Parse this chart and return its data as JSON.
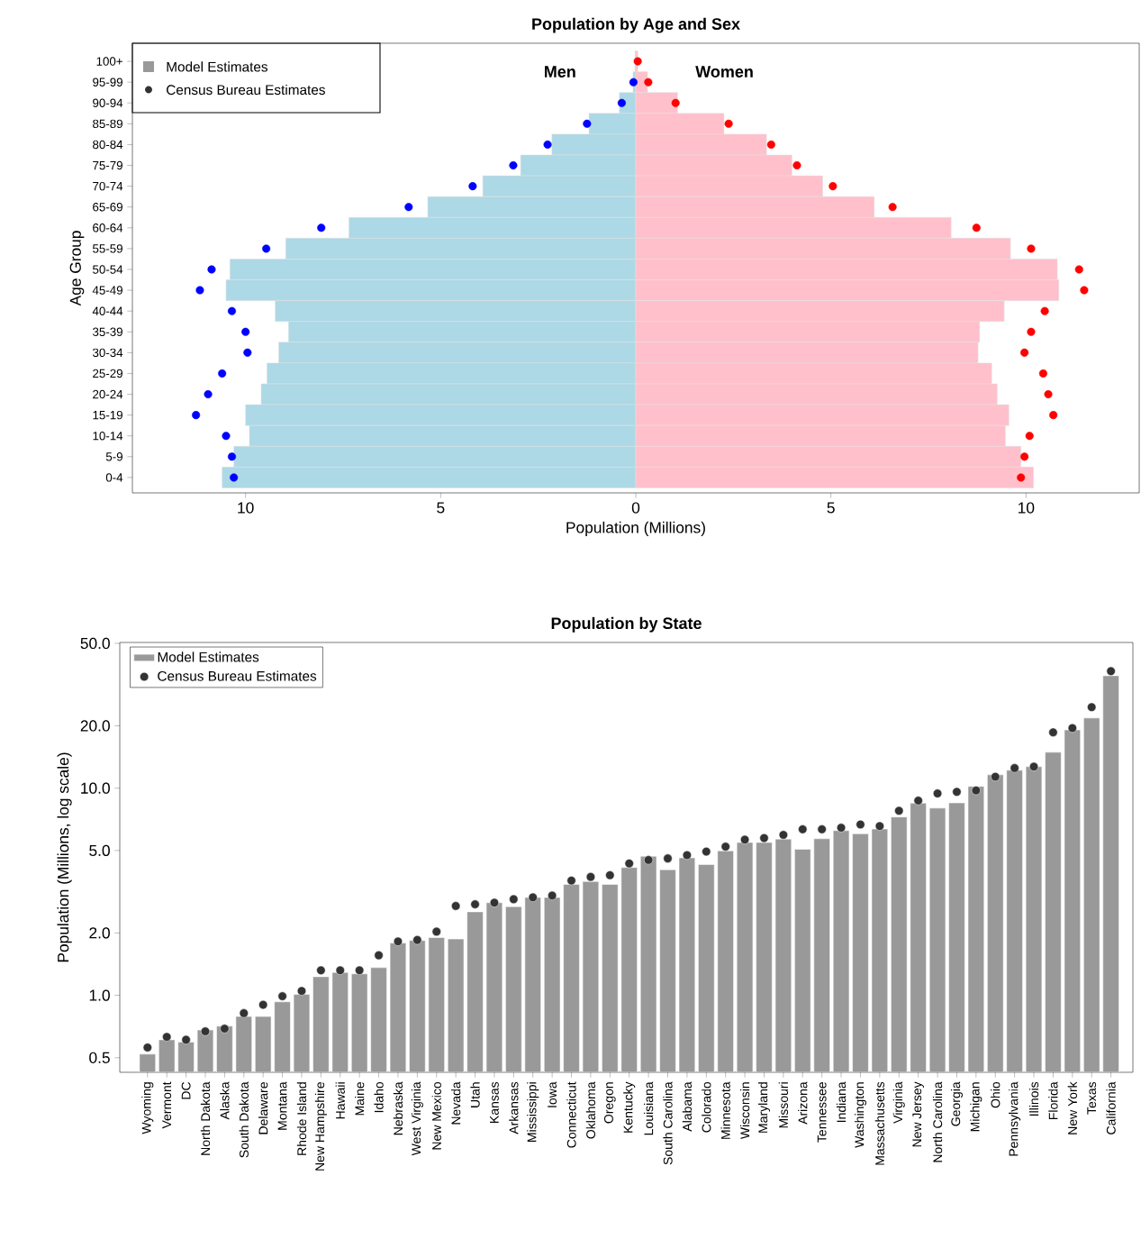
{
  "chart_data": [
    {
      "type": "bar",
      "orientation": "horizontal",
      "stacked": true,
      "title": "Population by Age and Sex",
      "xlabel": "Population (Millions)",
      "ylabel": "Age Group",
      "categories": [
        "100+",
        "95-99",
        "90-94",
        "85-89",
        "80-84",
        "75-79",
        "70-74",
        "65-69",
        "60-64",
        "55-59",
        "50-54",
        "45-49",
        "40-44",
        "35-39",
        "30-34",
        "25-29",
        "20-24",
        "15-19",
        "10-14",
        "5-9",
        "0-4"
      ],
      "xlim": [
        -12.9,
        12.9
      ],
      "xticks": [
        {
          "value": -10,
          "label": "10"
        },
        {
          "value": -5,
          "label": "5"
        },
        0,
        5,
        10
      ],
      "series": [
        {
          "name": "Men",
          "color": "#add8e6",
          "values": [
            -0.02,
            -0.07,
            -0.42,
            -1.2,
            -2.15,
            -2.95,
            -3.92,
            -5.33,
            -7.35,
            -8.97,
            -10.4,
            -10.5,
            -9.24,
            -8.9,
            -9.15,
            -9.45,
            -9.6,
            -10.0,
            -9.9,
            -10.3,
            -10.6
          ]
        },
        {
          "name": "Women",
          "color": "#ffc0cb",
          "values": [
            0.05,
            0.3,
            1.07,
            2.26,
            3.35,
            4.0,
            4.79,
            6.11,
            8.08,
            9.6,
            10.8,
            10.84,
            9.44,
            8.81,
            8.77,
            9.12,
            9.26,
            9.56,
            9.47,
            9.87,
            10.19
          ]
        },
        {
          "type": "scatter",
          "marker": "circle",
          "color": "#0000ff",
          "values": [
            null,
            -0.06,
            -0.36,
            -1.25,
            -2.26,
            -3.14,
            -4.18,
            -5.82,
            -8.06,
            -9.47,
            -10.87,
            -11.17,
            -10.35,
            -10.0,
            -9.95,
            -10.6,
            -10.96,
            -11.27,
            -10.5,
            -10.35,
            -10.3
          ]
        },
        {
          "type": "scatter",
          "marker": "circle",
          "color": "#ff0000",
          "values": [
            0.05,
            0.32,
            1.02,
            2.38,
            3.47,
            4.13,
            5.05,
            6.58,
            8.73,
            10.13,
            11.36,
            11.49,
            10.48,
            10.13,
            9.96,
            10.44,
            10.57,
            10.7,
            10.09,
            9.96,
            9.87
          ]
        }
      ],
      "annotations": [
        "Model Estimates",
        "Census Bureau Estimates"
      ]
    },
    {
      "type": "bar",
      "title": "Population by State",
      "ylabel": "Population (Millions, log scale)",
      "log": "y",
      "legend": "top left",
      "categories": [
        "Wyoming",
        "Vermont",
        "DC",
        "North Dakota",
        "Alaska",
        "South Dakota",
        "Delaware",
        "Montana",
        "Rhode Island",
        "New Hampshire",
        "Hawaii",
        "Maine",
        "Idaho",
        "Nebraska",
        "West Virginia",
        "New Mexico",
        "Nevada",
        "Utah",
        "Kansas",
        "Arkansas",
        "Mississippi",
        "Iowa",
        "Connecticut",
        "Oklahoma",
        "Oregon",
        "Kentucky",
        "Louisiana",
        "South Carolina",
        "Alabama",
        "Colorado",
        "Minnesota",
        "Wisconsin",
        "Maryland",
        "Missouri",
        "Arizona",
        "Tennessee",
        "Indiana",
        "Washington",
        "Massachusetts",
        "Virginia",
        "New Jersey",
        "North Carolina",
        "Georgia",
        "Michigan",
        "Ohio",
        "Pennsylvania",
        "Illinois",
        "Florida",
        "New York",
        "Texas",
        "California"
      ],
      "ylim": [
        0.425,
        50.5
      ],
      "yticks": [
        0.5,
        {
          "value": 1,
          "label": "1.0"
        },
        {
          "value": 2,
          "label": "2.0"
        },
        {
          "value": 5,
          "label": "5.0"
        },
        {
          "value": 10,
          "label": "10.0"
        },
        {
          "value": 20,
          "label": "20.0"
        },
        {
          "value": 50,
          "label": "50.0"
        }
      ],
      "series": [
        {
          "name": "Model Estimates",
          "color": "#999999",
          "values": [
            0.52,
            0.61,
            0.595,
            0.68,
            0.71,
            0.79,
            0.79,
            0.93,
            1.01,
            1.23,
            1.29,
            1.27,
            1.36,
            1.79,
            1.84,
            1.9,
            1.87,
            2.53,
            2.8,
            2.68,
            2.97,
            2.97,
            3.43,
            3.54,
            3.43,
            4.14,
            4.69,
            4.04,
            4.61,
            4.28,
            4.98,
            5.47,
            5.47,
            5.68,
            5.07,
            5.7,
            6.24,
            6.02,
            6.35,
            7.26,
            8.46,
            8.01,
            8.49,
            10.2,
            11.6,
            12.2,
            12.7,
            14.9,
            19.1,
            21.8,
            34.9
          ]
        },
        {
          "name": "Census Bureau Estimates",
          "type": "scatter",
          "marker": "circle",
          "color": "#333333",
          "values": [
            0.56,
            0.63,
            0.61,
            0.67,
            0.69,
            0.82,
            0.9,
            0.99,
            1.05,
            1.32,
            1.32,
            1.32,
            1.56,
            1.82,
            1.85,
            2.03,
            2.7,
            2.75,
            2.8,
            2.91,
            2.97,
            3.03,
            3.58,
            3.73,
            3.8,
            4.33,
            4.5,
            4.58,
            4.75,
            4.94,
            5.22,
            5.64,
            5.74,
            5.95,
            6.33,
            6.33,
            6.44,
            6.68,
            6.56,
            7.78,
            8.71,
            9.43,
            9.6,
            9.75,
            11.35,
            12.5,
            12.7,
            18.6,
            19.5,
            24.6,
            36.7
          ]
        }
      ]
    }
  ]
}
